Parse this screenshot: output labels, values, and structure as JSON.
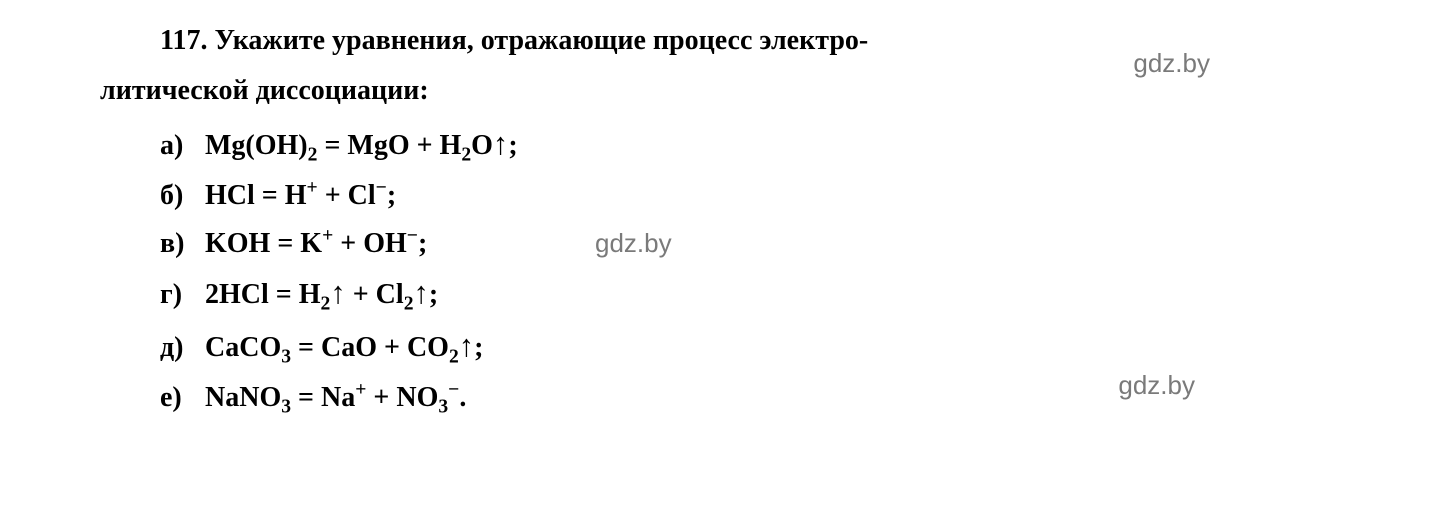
{
  "question": {
    "number": "117.",
    "line1_bold": "Укажите уравнения, отражающие процесс электро-",
    "line2_bold": "литической диссоциации:"
  },
  "options": {
    "a": {
      "label": "а)",
      "eq_html": "Mg(OH)<sub>2</sub> = MgO + H<sub>2</sub>O<span class=\"arrow-up\">↑</span>;"
    },
    "b": {
      "label": "б)",
      "eq_html": "HCl = H<sup>+</sup> + Cl<sup>−</sup>;"
    },
    "c": {
      "label": "в)",
      "eq_html": "KOH = K<sup>+</sup> + OH<sup>−</sup>;"
    },
    "d": {
      "label": "г)",
      "eq_html": "2HCl = H<sub>2</sub><span class=\"arrow-up\">↑</span> + Cl<sub>2</sub><span class=\"arrow-up\">↑</span>;"
    },
    "e": {
      "label": "д)",
      "eq_html": "CaCO<sub>3</sub> = CaO + CO<sub>2</sub><span class=\"arrow-up\">↑</span>;"
    },
    "f": {
      "label": "е)",
      "eq_html": "NaNO<sub>3</sub> = Na<sup>+</sup> + NO<sub>3</sub><sup>−</sup>."
    }
  },
  "watermarks": {
    "text": "gdz.by"
  },
  "style": {
    "bg_color": "#ffffff",
    "text_color": "#000000",
    "watermark_color": "#7a7a7a",
    "font_main": "Georgia, 'Times New Roman', serif",
    "font_wm": "Arial, sans-serif",
    "fontsize_main": 28,
    "fontsize_wm": 26
  }
}
